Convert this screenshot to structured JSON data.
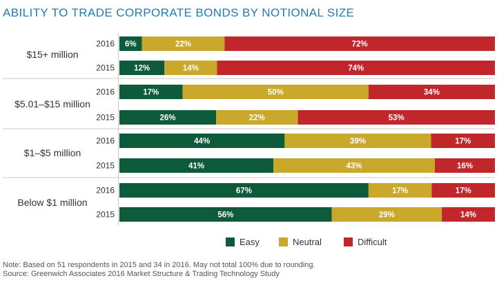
{
  "title": "ABILITY TO TRADE CORPORATE BONDS BY NOTIONAL SIZE",
  "notes": {
    "line1": "Note: Based on 51 respondents in 2015 and 34 in 2016. May not total 100% due to rounding.",
    "line2": "Source: Greenwich Associates 2016 Market Structure & Trading Technology Study"
  },
  "chart_data": {
    "type": "bar",
    "orientation": "horizontal",
    "stacked": true,
    "title": "ABILITY TO TRADE CORPORATE BONDS BY NOTIONAL SIZE",
    "xlabel": "",
    "ylabel": "",
    "xlim": [
      0,
      100
    ],
    "grid": false,
    "legend": "bottom",
    "groups": [
      {
        "label": "$15+ million",
        "rows": [
          {
            "year": "2016",
            "values": [
              6,
              22,
              72
            ],
            "labels": [
              "6%",
              "22%",
              "72%"
            ]
          },
          {
            "year": "2015",
            "values": [
              12,
              14,
              74
            ],
            "labels": [
              "12%",
              "14%",
              "74%"
            ]
          }
        ]
      },
      {
        "label": "$5.01–$15 million",
        "rows": [
          {
            "year": "2016",
            "values": [
              17,
              50,
              34
            ],
            "labels": [
              "17%",
              "50%",
              "34%"
            ]
          },
          {
            "year": "2015",
            "values": [
              26,
              22,
              53
            ],
            "labels": [
              "26%",
              "22%",
              "53%"
            ]
          }
        ]
      },
      {
        "label": "$1–$5 million",
        "rows": [
          {
            "year": "2016",
            "values": [
              44,
              39,
              17
            ],
            "labels": [
              "44%",
              "39%",
              "17%"
            ]
          },
          {
            "year": "2015",
            "values": [
              41,
              43,
              16
            ],
            "labels": [
              "41%",
              "43%",
              "16%"
            ]
          }
        ]
      },
      {
        "label": "Below $1 million",
        "rows": [
          {
            "year": "2016",
            "values": [
              67,
              17,
              17
            ],
            "labels": [
              "67%",
              "17%",
              "17%"
            ]
          },
          {
            "year": "2015",
            "values": [
              56,
              29,
              14
            ],
            "labels": [
              "56%",
              "29%",
              "14%"
            ]
          }
        ]
      }
    ],
    "series": [
      {
        "name": "Easy",
        "color": "#0e5b3c"
      },
      {
        "name": "Neutral",
        "color": "#c9a82c"
      },
      {
        "name": "Difficult",
        "color": "#c1262b"
      }
    ]
  }
}
